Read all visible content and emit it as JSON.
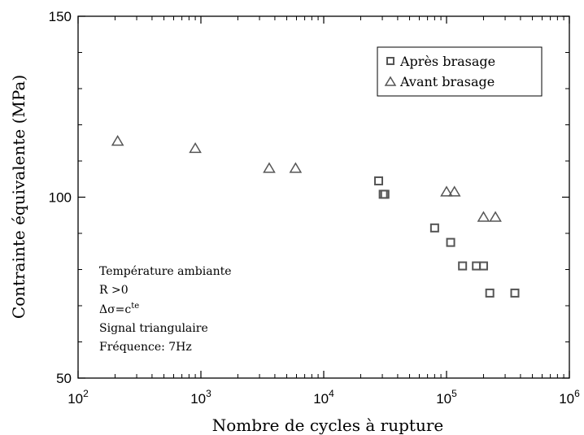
{
  "chart_data": {
    "type": "scatter",
    "xscale": "log",
    "xlim": [
      100,
      1000000
    ],
    "ylim": [
      50,
      150
    ],
    "xlabel": "Nombre de cycles à rupture",
    "ylabel": "Contrainte équivalente (MPa)",
    "x_ticks": [
      {
        "value": 100,
        "base": "10",
        "exp": "2"
      },
      {
        "value": 1000,
        "base": "10",
        "exp": "3"
      },
      {
        "value": 10000,
        "base": "10",
        "exp": "4"
      },
      {
        "value": 100000,
        "base": "10",
        "exp": "5"
      },
      {
        "value": 1000000,
        "base": "10",
        "exp": "6"
      }
    ],
    "y_ticks": [
      {
        "value": 50,
        "label": "50"
      },
      {
        "value": 100,
        "label": "100"
      },
      {
        "value": 150,
        "label": "150"
      }
    ],
    "legend_position": "top-right",
    "grid": false,
    "series": [
      {
        "name": "Après brasage",
        "marker": "square",
        "color": "#555555",
        "points": [
          {
            "x": 28000,
            "y": 104.5
          },
          {
            "x": 30500,
            "y": 100.8
          },
          {
            "x": 31500,
            "y": 100.8
          },
          {
            "x": 80000,
            "y": 91.5
          },
          {
            "x": 108000,
            "y": 87.5
          },
          {
            "x": 135000,
            "y": 81
          },
          {
            "x": 175000,
            "y": 81
          },
          {
            "x": 200000,
            "y": 81
          },
          {
            "x": 225000,
            "y": 73.5
          },
          {
            "x": 360000,
            "y": 73.5
          }
        ]
      },
      {
        "name": "Avant brasage",
        "marker": "triangle",
        "color": "#555555",
        "points": [
          {
            "x": 210,
            "y": 115.5
          },
          {
            "x": 900,
            "y": 113.5
          },
          {
            "x": 3600,
            "y": 108
          },
          {
            "x": 5900,
            "y": 108
          },
          {
            "x": 100000,
            "y": 101.5
          },
          {
            "x": 116000,
            "y": 101.5
          },
          {
            "x": 200000,
            "y": 94.5
          },
          {
            "x": 250000,
            "y": 94.5
          }
        ]
      }
    ],
    "annotation": {
      "lines": [
        "Température ambiante",
        "R >0",
        "Signal triangulaire",
        "Fréquence: 7Hz"
      ],
      "delta_sigma": {
        "main": "Δσ=c",
        "superscript": "te"
      }
    }
  }
}
